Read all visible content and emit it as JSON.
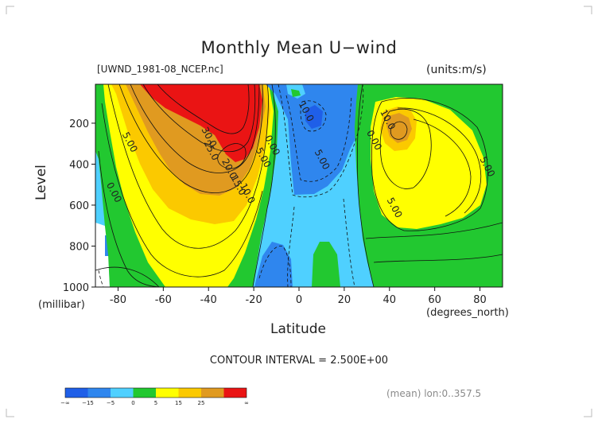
{
  "chart_data": {
    "type": "heatmap",
    "title": "Monthly Mean U−wind",
    "dataset": "[UWND_1981-08_NCEP.nc]",
    "units": "(units:m/s)",
    "ylabel": "Level",
    "yunit": "(millibar)",
    "xlabel": "Latitude",
    "xunit": "(degrees_north)",
    "xlim": [
      -90,
      90
    ],
    "ylim": [
      1000,
      10
    ],
    "x_ticks": [
      -80,
      -60,
      -40,
      -20,
      0,
      20,
      40,
      60,
      80
    ],
    "y_ticks": [
      200,
      400,
      600,
      800,
      1000
    ],
    "contour_interval": "CONTOUR INTERVAL = 2.500E+00",
    "mean_note": "(mean) lon:0..357.5",
    "color_levels": [
      {
        "label": "−∞",
        "color": "#1f5fe8"
      },
      {
        "label": "−15",
        "color": "#2f86ee"
      },
      {
        "label": "−5",
        "color": "#4fd0ff"
      },
      {
        "label": "0",
        "color": "#22c830"
      },
      {
        "label": "5",
        "color": "#ffff00"
      },
      {
        "label": "15",
        "color": "#fbc900"
      },
      {
        "label": "25",
        "color": "#e09a20"
      },
      {
        "label": "∞",
        "color": "#ea1414"
      }
    ],
    "contour_labels": [
      {
        "text": "30.0",
        "lat": -41,
        "lev": 275
      },
      {
        "text": "25.0",
        "lat": -40,
        "lev": 340
      },
      {
        "text": "20.0",
        "lat": -32,
        "lev": 430
      },
      {
        "text": "15.0",
        "lat": -28,
        "lev": 510
      },
      {
        "text": "10.0",
        "lat": -24,
        "lev": 550
      },
      {
        "text": "5.00",
        "lat": -17,
        "lev": 375
      },
      {
        "text": "0.00",
        "lat": -13,
        "lev": 315
      },
      {
        "text": "5.00",
        "lat": -76,
        "lev": 300
      },
      {
        "text": "0.00",
        "lat": -83,
        "lev": 545
      },
      {
        "text": "10.0",
        "lat": 2,
        "lev": 150
      },
      {
        "text": "5.00",
        "lat": 9,
        "lev": 385
      },
      {
        "text": "0.00",
        "lat": 32,
        "lev": 290
      },
      {
        "text": "10.0",
        "lat": 38,
        "lev": 190
      },
      {
        "text": "5.00",
        "lat": 41,
        "lev": 620
      },
      {
        "text": "5.00",
        "lat": 82,
        "lev": 420
      }
    ]
  }
}
